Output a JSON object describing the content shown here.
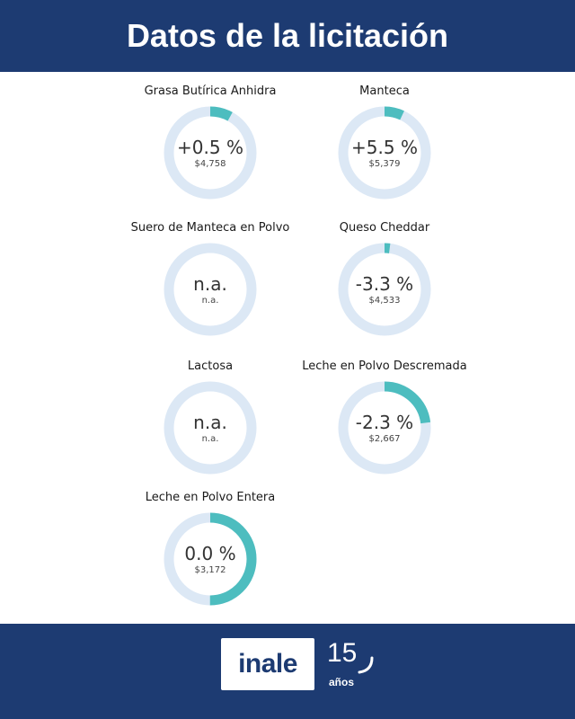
{
  "header": {
    "title": "Datos de la licitación"
  },
  "colors": {
    "header_bg": "#1d3b72",
    "ring_track": "#dce8f5",
    "ring_fill": "#4dbdbf"
  },
  "products": [
    {
      "name": "Grasa Butírica Anhidra",
      "change": "+0.5 %",
      "price": "$4,758",
      "ring_fraction": 0.08
    },
    {
      "name": "Manteca",
      "change": "+5.5 %",
      "price": "$5,379",
      "ring_fraction": 0.07
    },
    {
      "name": "Suero de Manteca en Polvo",
      "change": "n.a.",
      "price": "n.a.",
      "ring_fraction": 0
    },
    {
      "name": "Queso Cheddar",
      "change": "-3.3 %",
      "price": "$4,533",
      "ring_fraction": 0.02
    },
    {
      "name": "Lactosa",
      "change": "n.a.",
      "price": "n.a.",
      "ring_fraction": 0
    },
    {
      "name": "Leche en Polvo Descremada",
      "change": "-2.3 %",
      "price": "$2,667",
      "ring_fraction": 0.23
    },
    {
      "name": "Leche en Polvo Entera",
      "change": "0.0 %",
      "price": "$3,172",
      "ring_fraction": 0.5
    }
  ],
  "footer": {
    "logo_text": "inale",
    "anniversary_number": "15",
    "anniversary_word": "años"
  }
}
